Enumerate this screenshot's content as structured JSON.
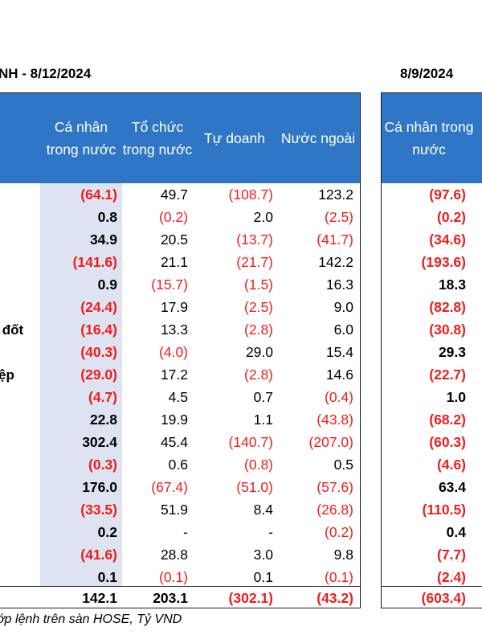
{
  "title_left": "NH - 8/12/2024",
  "title_right": "8/9/2024",
  "headers": [
    "Cá nhân trong nước",
    "Tổ chức trong nước",
    "Tự doanh",
    "Nước ngoài"
  ],
  "header_right": "Cá nhân trong nước",
  "rows": [
    {
      "label": "",
      "values": [
        "(64.1)",
        "49.7",
        "(108.7)",
        "123.2"
      ],
      "right": "(97.6)"
    },
    {
      "label": "",
      "values": [
        "0.8",
        "(0.2)",
        "2.0",
        "(2.5)"
      ],
      "right": "(0.2)"
    },
    {
      "label": "",
      "values": [
        "34.9",
        "20.5",
        "(13.7)",
        "(41.7)"
      ],
      "right": "(34.6)"
    },
    {
      "label": "",
      "values": [
        "(141.6)",
        "21.1",
        "(21.7)",
        "142.2"
      ],
      "right": "(193.6)"
    },
    {
      "label": "",
      "values": [
        "0.9",
        "(15.7)",
        "(1.5)",
        "16.3"
      ],
      "right": "18.3"
    },
    {
      "label": "",
      "values": [
        "(24.4)",
        "17.9",
        "(2.5)",
        "9.0"
      ],
      "right": "(82.8)"
    },
    {
      "label": "́ đốt",
      "values": [
        "(16.4)",
        "13.3",
        "(2.8)",
        "6.0"
      ],
      "right": "(30.8)"
    },
    {
      "label": "",
      "values": [
        "(40.3)",
        "(4.0)",
        "29.0",
        "15.4"
      ],
      "right": "29.3"
    },
    {
      "label": "ệp",
      "values": [
        "(29.0)",
        "17.2",
        "(2.8)",
        "14.6"
      ],
      "right": "(22.7)"
    },
    {
      "label": "",
      "values": [
        "(4.7)",
        "4.5",
        "0.7",
        "(0.4)"
      ],
      "right": "1.0"
    },
    {
      "label": "",
      "values": [
        "22.8",
        "19.9",
        "1.1",
        "(43.8)"
      ],
      "right": "(68.2)"
    },
    {
      "label": "",
      "values": [
        "302.4",
        "45.4",
        "(140.7)",
        "(207.0)"
      ],
      "right": "(60.3)"
    },
    {
      "label": "",
      "values": [
        "(0.3)",
        "0.6",
        "(0.8)",
        "0.5"
      ],
      "right": "(4.6)"
    },
    {
      "label": "",
      "values": [
        "176.0",
        "(67.4)",
        "(51.0)",
        "(57.6)"
      ],
      "right": "63.4"
    },
    {
      "label": "",
      "values": [
        "(33.5)",
        "51.9",
        "8.4",
        "(26.8)"
      ],
      "right": "(110.5)"
    },
    {
      "label": "",
      "values": [
        "0.2",
        "-",
        "-",
        "(0.2)"
      ],
      "right": "0.4"
    },
    {
      "label": "",
      "values": [
        "(41.6)",
        "28.8",
        "3.0",
        "9.8"
      ],
      "right": "(7.7)"
    },
    {
      "label": "",
      "values": [
        "0.1",
        "(0.1)",
        "0.1",
        "(0.1)"
      ],
      "right": "(2.4)"
    }
  ],
  "total": {
    "values": [
      "142.1",
      "203.1",
      "(302.1)",
      "(43.2)"
    ],
    "right": "(603.4)"
  },
  "source": "ớp lệnh trên sàn HOSE, Tỷ VND",
  "colors": {
    "header_bg": "#2f77c6",
    "negative": "#ee1c1c",
    "individual_shade": "#dde3f1"
  }
}
